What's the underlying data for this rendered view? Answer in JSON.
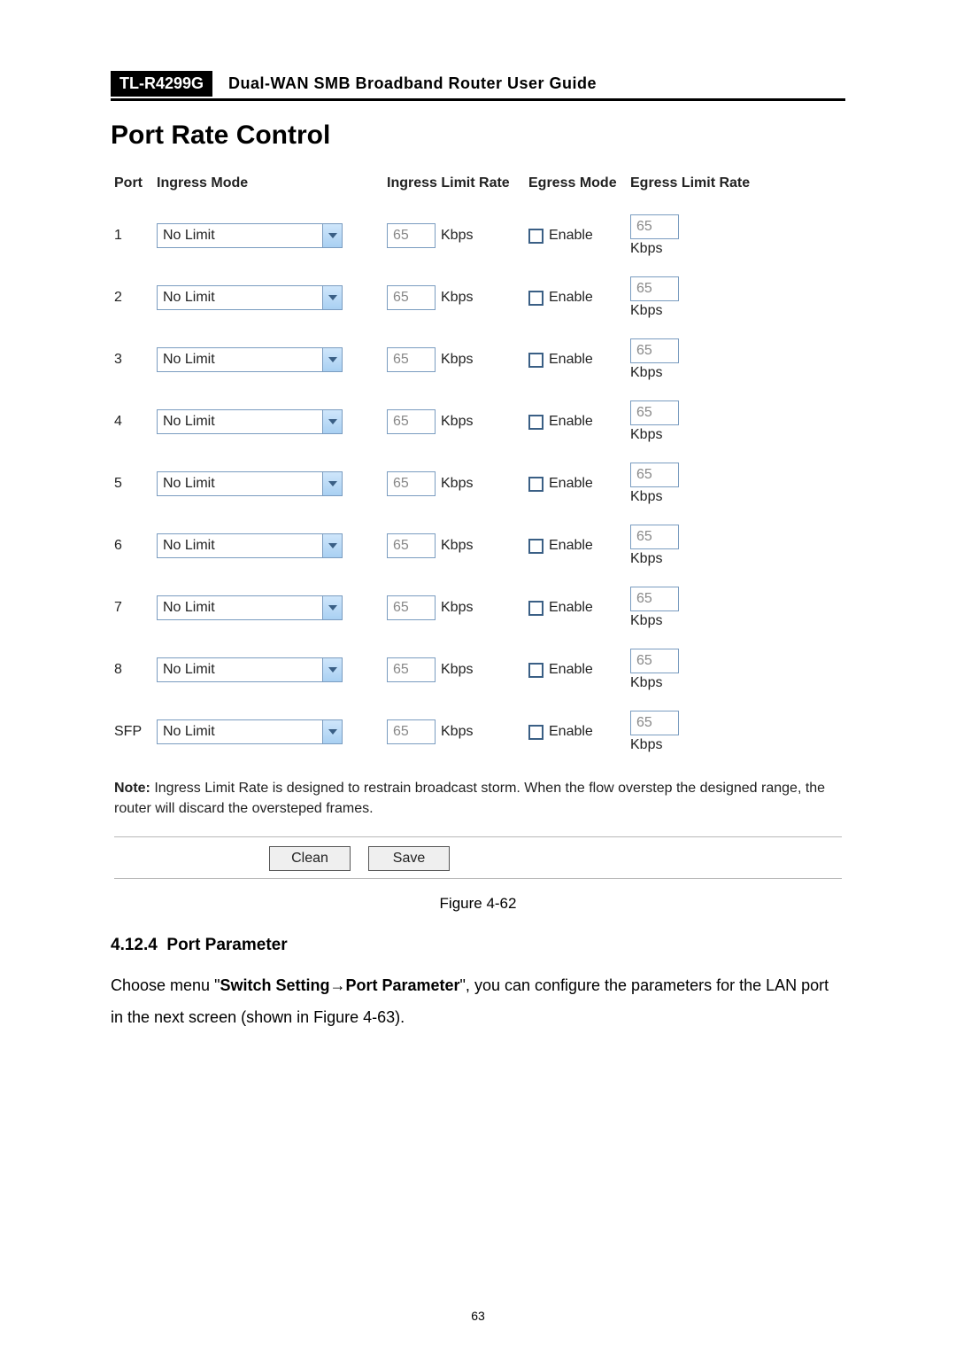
{
  "header": {
    "model": "TL-R4299G",
    "guide": "Dual-WAN SMB Broadband Router User Guide"
  },
  "panel": {
    "title": "Port Rate Control",
    "columns": {
      "port": "Port",
      "ingress_mode": "Ingress Mode",
      "ingress_rate": "Ingress Limit Rate",
      "egress_mode": "Egress Mode",
      "egress_rate": "Egress Limit Rate"
    },
    "rows": [
      {
        "port": "1",
        "ingress_mode": "No Limit",
        "ingress_rate": "65",
        "ingress_unit": "Kbps",
        "egress_enable_label": "Enable",
        "egress_checked": false,
        "egress_rate": "65",
        "egress_unit": "Kbps"
      },
      {
        "port": "2",
        "ingress_mode": "No Limit",
        "ingress_rate": "65",
        "ingress_unit": "Kbps",
        "egress_enable_label": "Enable",
        "egress_checked": false,
        "egress_rate": "65",
        "egress_unit": "Kbps"
      },
      {
        "port": "3",
        "ingress_mode": "No Limit",
        "ingress_rate": "65",
        "ingress_unit": "Kbps",
        "egress_enable_label": "Enable",
        "egress_checked": false,
        "egress_rate": "65",
        "egress_unit": "Kbps"
      },
      {
        "port": "4",
        "ingress_mode": "No Limit",
        "ingress_rate": "65",
        "ingress_unit": "Kbps",
        "egress_enable_label": "Enable",
        "egress_checked": false,
        "egress_rate": "65",
        "egress_unit": "Kbps"
      },
      {
        "port": "5",
        "ingress_mode": "No Limit",
        "ingress_rate": "65",
        "ingress_unit": "Kbps",
        "egress_enable_label": "Enable",
        "egress_checked": false,
        "egress_rate": "65",
        "egress_unit": "Kbps"
      },
      {
        "port": "6",
        "ingress_mode": "No Limit",
        "ingress_rate": "65",
        "ingress_unit": "Kbps",
        "egress_enable_label": "Enable",
        "egress_checked": false,
        "egress_rate": "65",
        "egress_unit": "Kbps"
      },
      {
        "port": "7",
        "ingress_mode": "No Limit",
        "ingress_rate": "65",
        "ingress_unit": "Kbps",
        "egress_enable_label": "Enable",
        "egress_checked": false,
        "egress_rate": "65",
        "egress_unit": "Kbps"
      },
      {
        "port": "8",
        "ingress_mode": "No Limit",
        "ingress_rate": "65",
        "ingress_unit": "Kbps",
        "egress_enable_label": "Enable",
        "egress_checked": false,
        "egress_rate": "65",
        "egress_unit": "Kbps"
      },
      {
        "port": "SFP",
        "ingress_mode": "No Limit",
        "ingress_rate": "65",
        "ingress_unit": "Kbps",
        "egress_enable_label": "Enable",
        "egress_checked": false,
        "egress_rate": "65",
        "egress_unit": "Kbps"
      }
    ],
    "note_label": "Note:",
    "note_text": " Ingress Limit Rate is designed to restrain broadcast storm. When the flow overstep the designed range, the router will discard the oversteped frames.",
    "buttons": {
      "clean": "Clean",
      "save": "Save"
    }
  },
  "figure_caption": "Figure 4-62",
  "section": {
    "number": "4.12.4",
    "title": "Port Parameter"
  },
  "body": {
    "t1": "Choose menu \"",
    "t2": "Switch Setting→Port Parameter",
    "t3": "\", you can configure the parameters for the LAN port in the next screen (shown in Figure 4-63)."
  },
  "page_number": "63",
  "style": {
    "header_bg": "#000000",
    "header_fg": "#ffffff",
    "select_arrow_top": "#cfe6fb",
    "select_arrow_bottom": "#a9d0f2",
    "border_blue": "#7a9cc0",
    "checkbox_border": "#3a5f85",
    "disabled_text": "#888888"
  }
}
